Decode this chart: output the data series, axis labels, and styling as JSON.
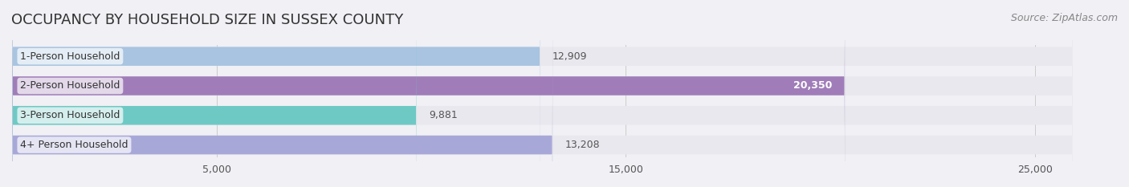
{
  "title": "OCCUPANCY BY HOUSEHOLD SIZE IN SUSSEX COUNTY",
  "source": "Source: ZipAtlas.com",
  "categories": [
    "1-Person Household",
    "2-Person Household",
    "3-Person Household",
    "4+ Person Household"
  ],
  "values": [
    12909,
    20350,
    9881,
    13208
  ],
  "bar_colors": [
    "#a8c4e0",
    "#a07db8",
    "#6ec9c4",
    "#a8a8d8"
  ],
  "label_colors": [
    "#333333",
    "#ffffff",
    "#333333",
    "#333333"
  ],
  "xlim": [
    0,
    27000
  ],
  "xticks": [
    5000,
    15000,
    25000
  ],
  "xtick_labels": [
    "5,000",
    "15,000",
    "25,000"
  ],
  "background_color": "#f0f0f5",
  "bar_bg_color": "#e8e8ee",
  "title_fontsize": 13,
  "label_fontsize": 9,
  "value_fontsize": 9,
  "source_fontsize": 9
}
